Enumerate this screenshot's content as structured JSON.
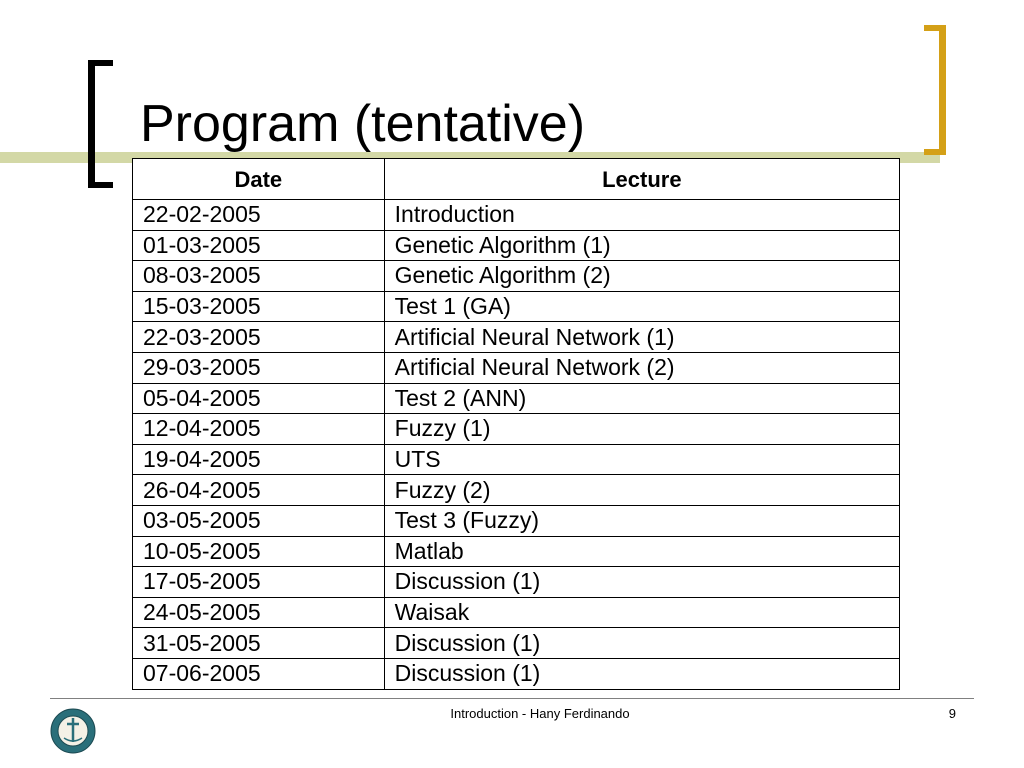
{
  "slide": {
    "title": "Program (tentative)",
    "colors": {
      "accent_bar": "#d3d8a6",
      "right_bracket": "#d4a017",
      "left_bracket": "#000000"
    }
  },
  "table": {
    "headers": [
      "Date",
      "Lecture"
    ],
    "rows": [
      [
        "22-02-2005",
        "Introduction"
      ],
      [
        "01-03-2005",
        "Genetic Algorithm (1)"
      ],
      [
        "08-03-2005",
        "Genetic Algorithm (2)"
      ],
      [
        "15-03-2005",
        "Test 1 (GA)"
      ],
      [
        "22-03-2005",
        "Artificial Neural Network (1)"
      ],
      [
        "29-03-2005",
        "Artificial Neural Network (2)"
      ],
      [
        "05-04-2005",
        "Test 2 (ANN)"
      ],
      [
        "12-04-2005",
        "Fuzzy (1)"
      ],
      [
        "19-04-2005",
        "UTS"
      ],
      [
        "26-04-2005",
        "Fuzzy (2)"
      ],
      [
        "03-05-2005",
        "Test 3 (Fuzzy)"
      ],
      [
        "10-05-2005",
        "Matlab"
      ],
      [
        "17-05-2005",
        "Discussion (1)"
      ],
      [
        "24-05-2005",
        "Waisak"
      ],
      [
        "31-05-2005",
        "Discussion (1)"
      ],
      [
        "07-06-2005",
        "Discussion (1)"
      ]
    ]
  },
  "footer": {
    "text": "Introduction - Hany Ferdinando",
    "page_number": "9",
    "logo_icon": "university-seal-icon"
  }
}
